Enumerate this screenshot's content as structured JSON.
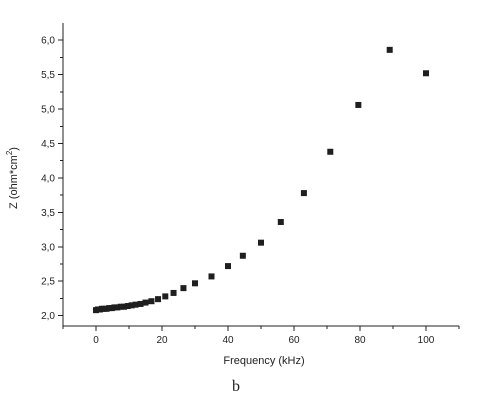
{
  "chart_data": {
    "type": "scatter",
    "xlabel": "Frequency (kHz)",
    "ylabel": "Z (ohm*cm",
    "ylabel_sup": "2",
    "ylabel_close": ")",
    "xlim": [
      -10,
      110
    ],
    "ylim": [
      1.85,
      6.25
    ],
    "x_ticks": [
      0,
      20,
      40,
      60,
      80,
      100
    ],
    "x_tick_labels": [
      "0",
      "20",
      "40",
      "60",
      "80",
      "100"
    ],
    "y_ticks": [
      2.0,
      2.5,
      3.0,
      3.5,
      4.0,
      4.5,
      5.0,
      5.5,
      6.0
    ],
    "y_tick_labels": [
      "2,0",
      "2,5",
      "3,0",
      "3,5",
      "4,0",
      "4,5",
      "5,0",
      "5,5",
      "6,0"
    ],
    "marker_color": "#1f1f1f",
    "points": [
      {
        "x": 0.0,
        "y": 2.08
      },
      {
        "x": 0.6,
        "y": 2.09
      },
      {
        "x": 1.2,
        "y": 2.09
      },
      {
        "x": 1.8,
        "y": 2.1
      },
      {
        "x": 2.5,
        "y": 2.1
      },
      {
        "x": 3.2,
        "y": 2.1
      },
      {
        "x": 4.0,
        "y": 2.11
      },
      {
        "x": 4.8,
        "y": 2.11
      },
      {
        "x": 5.6,
        "y": 2.12
      },
      {
        "x": 6.5,
        "y": 2.12
      },
      {
        "x": 7.5,
        "y": 2.13
      },
      {
        "x": 8.5,
        "y": 2.13
      },
      {
        "x": 9.6,
        "y": 2.14
      },
      {
        "x": 10.8,
        "y": 2.15
      },
      {
        "x": 12.0,
        "y": 2.16
      },
      {
        "x": 13.5,
        "y": 2.17
      },
      {
        "x": 15.0,
        "y": 2.19
      },
      {
        "x": 16.8,
        "y": 2.21
      },
      {
        "x": 18.8,
        "y": 2.24
      },
      {
        "x": 21.0,
        "y": 2.28
      },
      {
        "x": 23.5,
        "y": 2.33
      },
      {
        "x": 26.5,
        "y": 2.4
      },
      {
        "x": 30.0,
        "y": 2.47
      },
      {
        "x": 35.0,
        "y": 2.57
      },
      {
        "x": 40.0,
        "y": 2.72
      },
      {
        "x": 44.5,
        "y": 2.87
      },
      {
        "x": 50.0,
        "y": 3.06
      },
      {
        "x": 56.0,
        "y": 3.36
      },
      {
        "x": 63.0,
        "y": 3.78
      },
      {
        "x": 71.0,
        "y": 4.38
      },
      {
        "x": 79.5,
        "y": 5.06
      },
      {
        "x": 89.0,
        "y": 5.86
      },
      {
        "x": 100.0,
        "y": 5.52
      }
    ]
  },
  "caption": "b"
}
